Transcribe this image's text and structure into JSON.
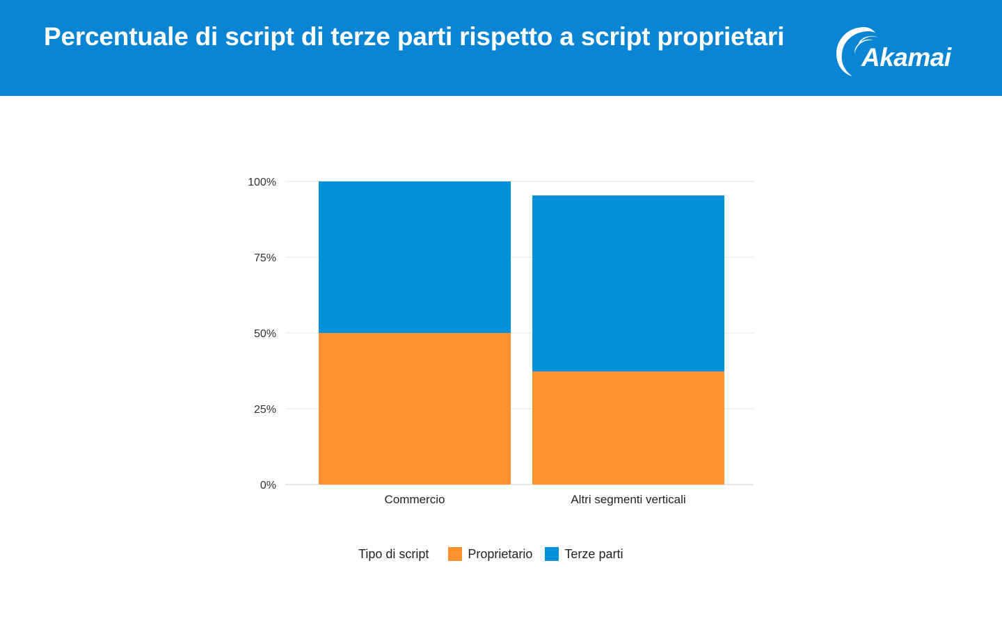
{
  "header": {
    "title": "Percentuale di script di terze parti rispetto a script proprietari",
    "background_color": "#0a85d4",
    "logo_text": "Akamai",
    "logo_icon": "akamai-swoosh-icon"
  },
  "chart_data": {
    "type": "bar",
    "stacked": true,
    "categories": [
      "Commercio",
      "Altri segmenti verticali"
    ],
    "series": [
      {
        "name": "Proprietario",
        "color": "#ff9130",
        "values": [
          50,
          37.3
        ]
      },
      {
        "name": "Terze parti",
        "color": "#0290d9",
        "values": [
          50,
          58.1
        ]
      }
    ],
    "ylim": [
      0,
      100
    ],
    "yticks": [
      0,
      25,
      50,
      75,
      100
    ],
    "ytick_labels": [
      "0%",
      "25%",
      "50%",
      "75%",
      "100%"
    ],
    "grid": true,
    "legend": {
      "title": "Tipo di script",
      "placement": "bottom-center"
    }
  }
}
